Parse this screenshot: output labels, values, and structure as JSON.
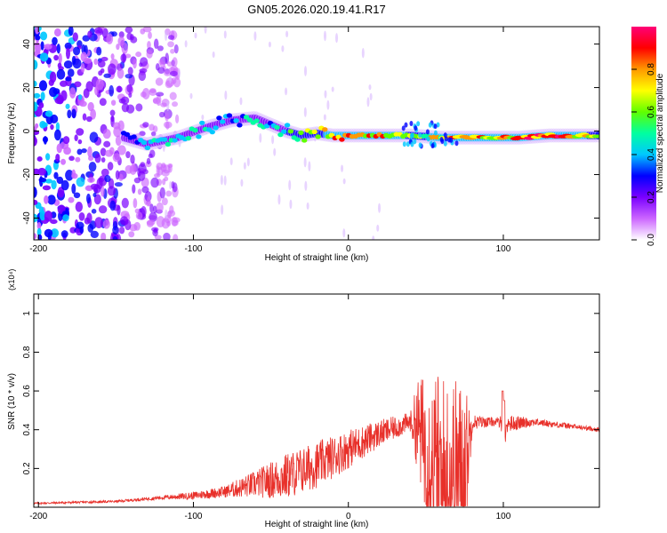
{
  "title": "GN05.2026.020.19.41.R17",
  "chart_data": [
    {
      "type": "heatmap",
      "xlabel": "Height of straight line (km)",
      "ylabel": "Frequency (Hz)",
      "xlim": [
        -203,
        162
      ],
      "ylim": [
        -50,
        48
      ],
      "xticks": [
        -200,
        -100,
        0,
        100
      ],
      "yticks": [
        -40,
        -20,
        0,
        20,
        40
      ],
      "colorbar": {
        "label": "Normalized spectral amplitude",
        "range": [
          0,
          1
        ],
        "ticks": [
          "0.0",
          "0.2",
          "0.4",
          "0.6",
          "0.8"
        ],
        "colors": [
          "#ffffff",
          "#cc66ff",
          "#7a00ff",
          "#0000ff",
          "#00c8ff",
          "#00ffa0",
          "#60ff00",
          "#ffff00",
          "#ff9900",
          "#ff0000",
          "#ff0077"
        ]
      },
      "ridge": {
        "x": [
          -145,
          -130,
          -110,
          -90,
          -75,
          -60,
          -50,
          -40,
          -30,
          -20,
          -10,
          0,
          20,
          40,
          60,
          70,
          90,
          110,
          130,
          162
        ],
        "freq": [
          -3,
          -6,
          -3,
          2,
          5,
          6,
          3,
          0,
          -2,
          -1,
          -2,
          -2,
          -2,
          -2,
          -3,
          -3,
          -3,
          -3,
          -2,
          -2
        ],
        "amp": [
          0.35,
          0.45,
          0.5,
          0.55,
          0.45,
          0.55,
          0.5,
          0.55,
          0.65,
          0.7,
          0.85,
          0.9,
          0.95,
          0.75,
          0.8,
          0.9,
          0.85,
          0.95,
          1.0,
          0.7
        ]
      },
      "noise_region_x": [
        -203,
        -110
      ]
    },
    {
      "type": "line",
      "xlabel": "Height of straight line (km)",
      "ylabel": "SNR (10 * v/v)",
      "y_multiplier": "(x10⁴)",
      "xlim": [
        -203,
        162
      ],
      "ylim": [
        0,
        1.1
      ],
      "xticks": [
        -200,
        -100,
        0,
        100
      ],
      "yticks": [
        0.2,
        0.4,
        0.6,
        0.8,
        1
      ],
      "ytick_labels": [
        "0.2",
        "0.4",
        "0.6",
        "0.8",
        "1"
      ],
      "color": "#e8302a",
      "envelope": {
        "x": [
          -203,
          -150,
          -120,
          -100,
          -80,
          -60,
          -40,
          -20,
          0,
          20,
          40,
          45,
          55,
          60,
          65,
          75,
          80,
          95,
          100,
          120,
          162
        ],
        "baseline": [
          0.02,
          0.03,
          0.05,
          0.06,
          0.08,
          0.12,
          0.16,
          0.22,
          0.3,
          0.38,
          0.44,
          0.42,
          0.2,
          0.1,
          0.15,
          0.2,
          0.44,
          0.44,
          0.43,
          0.44,
          0.4
        ],
        "amplitude": [
          0.005,
          0.006,
          0.01,
          0.02,
          0.03,
          0.07,
          0.12,
          0.12,
          0.1,
          0.07,
          0.05,
          0.25,
          0.5,
          0.6,
          0.55,
          0.45,
          0.04,
          0.02,
          0.05,
          0.02,
          0.01
        ]
      }
    }
  ]
}
